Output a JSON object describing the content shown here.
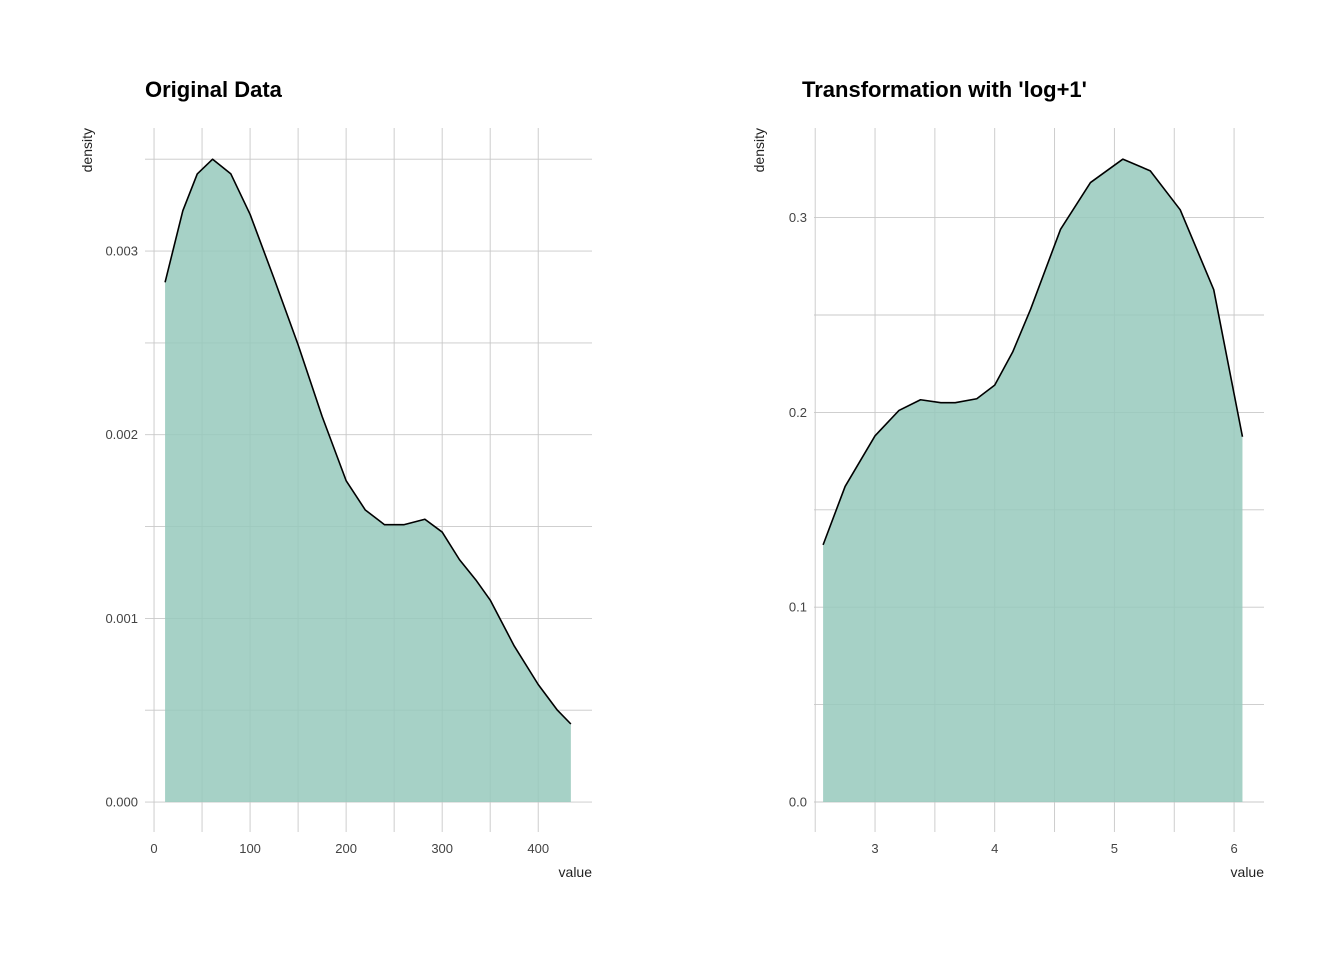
{
  "chart_data": [
    {
      "type": "area",
      "title": "Original Data",
      "xlabel": "value",
      "ylabel": "density",
      "xlim": [
        -9.4,
        456
      ],
      "ylim": [
        -0.000163,
        0.00367
      ],
      "xticks": [
        0,
        100,
        200,
        300,
        400
      ],
      "xtick_labels": [
        "0",
        "100",
        "200",
        "300",
        "400"
      ],
      "xminor": [
        50,
        150,
        250,
        350
      ],
      "yticks": [
        0,
        0.001,
        0.002,
        0.003
      ],
      "ytick_labels": [
        "0.000",
        "0.001",
        "0.002",
        "0.003"
      ],
      "yminor": [
        0.0005,
        0.0015,
        0.0025,
        0.0035
      ],
      "grid": true,
      "fill_color": "#97c9bc",
      "line_color": "#000000",
      "x": [
        11.5,
        30,
        45,
        61,
        80,
        100,
        125,
        150,
        175,
        200,
        220,
        240,
        260,
        282,
        300,
        318,
        335,
        350,
        375,
        400,
        420,
        434
      ],
      "y": [
        0.00283,
        0.00322,
        0.00342,
        0.0035,
        0.00342,
        0.0032,
        0.00285,
        0.00249,
        0.0021,
        0.00175,
        0.00159,
        0.00151,
        0.00151,
        0.00154,
        0.00147,
        0.00132,
        0.00121,
        0.0011,
        0.00085,
        0.00064,
        0.0005,
        0.000425
      ]
    },
    {
      "type": "area",
      "title": "Transformation with 'log+1'",
      "xlabel": "value",
      "ylabel": "density",
      "xlim": [
        2.49,
        6.25
      ],
      "ylim": [
        -0.0154,
        0.346
      ],
      "xticks": [
        3,
        4,
        5,
        6
      ],
      "xtick_labels": [
        "3",
        "4",
        "5",
        "6"
      ],
      "xminor": [
        2.5,
        3.5,
        4.5,
        5.5
      ],
      "yticks": [
        0,
        0.1,
        0.2,
        0.3
      ],
      "ytick_labels": [
        "0.0",
        "0.1",
        "0.2",
        "0.3"
      ],
      "yminor": [
        0.05,
        0.15,
        0.25
      ],
      "grid": true,
      "fill_color": "#97c9bc",
      "line_color": "#000000",
      "x": [
        2.566,
        2.75,
        3.0,
        3.2,
        3.38,
        3.55,
        3.67,
        3.85,
        4.0,
        4.15,
        4.3,
        4.55,
        4.8,
        5.07,
        5.3,
        5.55,
        5.83,
        6.07
      ],
      "y": [
        0.132,
        0.162,
        0.188,
        0.201,
        0.2065,
        0.205,
        0.205,
        0.207,
        0.214,
        0.231,
        0.253,
        0.294,
        0.318,
        0.33,
        0.324,
        0.304,
        0.263,
        0.1875
      ]
    }
  ]
}
